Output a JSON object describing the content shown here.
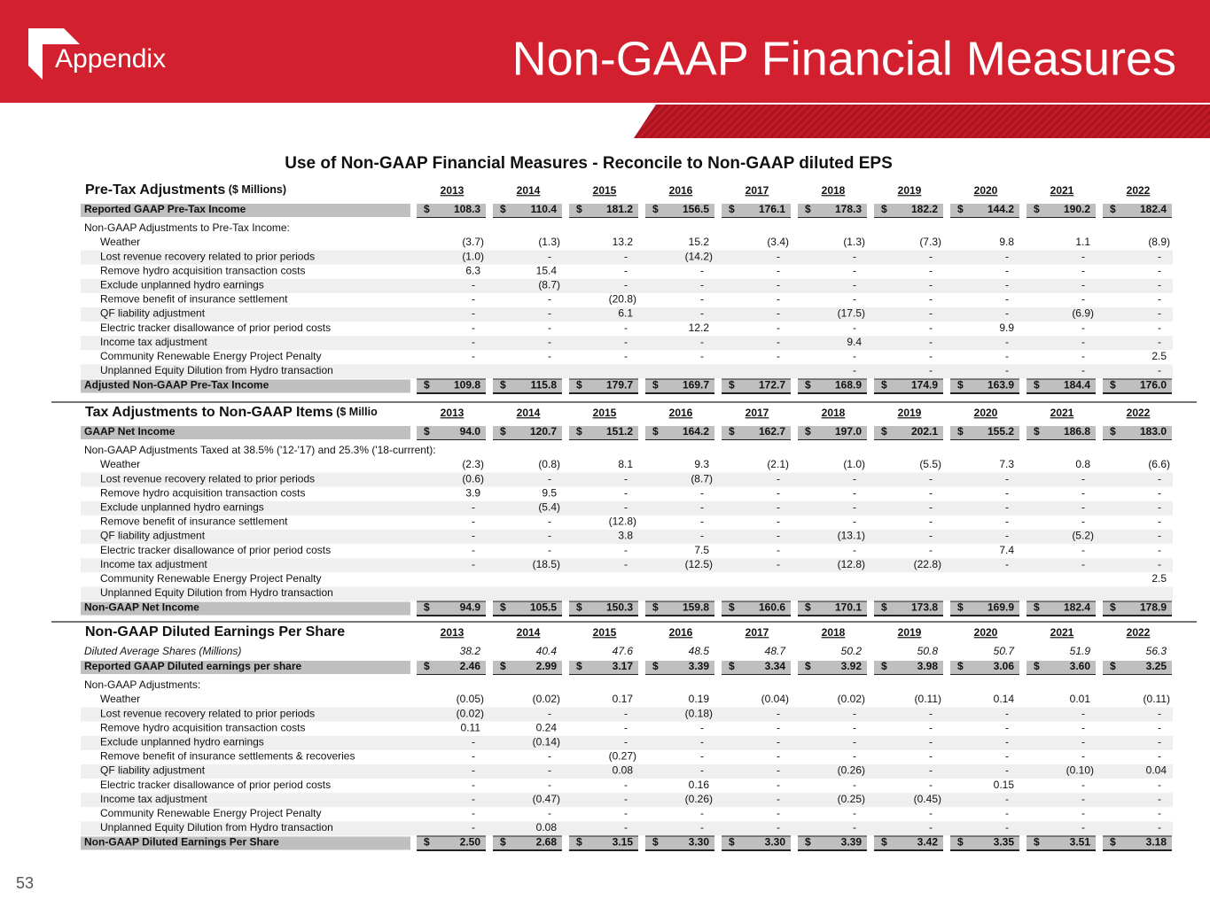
{
  "header": {
    "section": "Appendix",
    "title": "Non-GAAP Financial Measures"
  },
  "table_title": "Use of Non-GAAP Financial Measures - Reconcile to Non-GAAP diluted EPS",
  "page_number": "53",
  "sections": [
    {
      "heading": "Pre-Tax Adjustments",
      "unit": "($ Millions)",
      "currency": "$",
      "years": [
        "2013",
        "2014",
        "2015",
        "2016",
        "2017",
        "2018",
        "2019",
        "2020",
        "2021",
        "2022"
      ],
      "top": {
        "label": "Reported GAAP Pre-Tax Income",
        "values": [
          "108.3",
          "110.4",
          "181.2",
          "156.5",
          "176.1",
          "178.3",
          "182.2",
          "144.2",
          "190.2",
          "182.4"
        ]
      },
      "adjust_label": "Non-GAAP Adjustments to Pre-Tax Income:",
      "adjustments": [
        {
          "label": "Weather",
          "values": [
            "(3.7)",
            "(1.3)",
            "13.2",
            "15.2",
            "(3.4)",
            "(1.3)",
            "(7.3)",
            "9.8",
            "1.1",
            "(8.9)"
          ]
        },
        {
          "label": "Lost revenue recovery related to prior periods",
          "values": [
            "(1.0)",
            "-",
            "-",
            "(14.2)",
            "-",
            "-",
            "-",
            "-",
            "-",
            "-"
          ]
        },
        {
          "label": "Remove hydro acquisition transaction costs",
          "values": [
            "6.3",
            "15.4",
            "-",
            "-",
            "-",
            "-",
            "-",
            "-",
            "-",
            "-"
          ]
        },
        {
          "label": "Exclude unplanned hydro earnings",
          "values": [
            "-",
            "(8.7)",
            "-",
            "-",
            "-",
            "-",
            "-",
            "-",
            "-",
            "-"
          ]
        },
        {
          "label": "Remove benefit of insurance settlement",
          "values": [
            "-",
            "-",
            "(20.8)",
            "-",
            "-",
            "-",
            "-",
            "-",
            "-",
            "-"
          ]
        },
        {
          "label": "QF liability adjustment",
          "values": [
            "-",
            "-",
            "6.1",
            "-",
            "-",
            "(17.5)",
            "-",
            "-",
            "(6.9)",
            "-"
          ]
        },
        {
          "label": "Electric tracker disallowance of prior period costs",
          "values": [
            "-",
            "-",
            "-",
            "12.2",
            "-",
            "-",
            "-",
            "9.9",
            "-",
            "-"
          ]
        },
        {
          "label": "Income tax adjustment",
          "values": [
            "-",
            "-",
            "-",
            "-",
            "-",
            "9.4",
            "-",
            "-",
            "-",
            "-"
          ]
        },
        {
          "label": "Community Renewable Energy Project Penalty",
          "values": [
            "-",
            "-",
            "-",
            "-",
            "-",
            "-",
            "-",
            "-",
            "-",
            "2.5"
          ]
        },
        {
          "label": "Unplanned Equity Dilution from Hydro transaction",
          "values": [
            null,
            null,
            null,
            null,
            null,
            "-",
            "-",
            "-",
            "-",
            "-"
          ]
        }
      ],
      "bottom": {
        "label": "Adjusted Non-GAAP Pre-Tax Income",
        "values": [
          "109.8",
          "115.8",
          "179.7",
          "169.7",
          "172.7",
          "168.9",
          "174.9",
          "163.9",
          "184.4",
          "176.0"
        ]
      }
    },
    {
      "heading": "Tax Adjustments to Non-GAAP Items",
      "unit": "($ Millio",
      "currency": "$",
      "years": [
        "2013",
        "2014",
        "2015",
        "2016",
        "2017",
        "2018",
        "2019",
        "2020",
        "2021",
        "2022"
      ],
      "top": {
        "label": "GAAP Net Income",
        "values": [
          "94.0",
          "120.7",
          "151.2",
          "164.2",
          "162.7",
          "197.0",
          "202.1",
          "155.2",
          "186.8",
          "183.0"
        ]
      },
      "adjust_label": "Non-GAAP Adjustments Taxed at 38.5% ('12-'17) and 25.3% ('18-currrent):",
      "adjustments": [
        {
          "label": "Weather",
          "values": [
            "(2.3)",
            "(0.8)",
            "8.1",
            "9.3",
            "(2.1)",
            "(1.0)",
            "(5.5)",
            "7.3",
            "0.8",
            "(6.6)"
          ]
        },
        {
          "label": "Lost revenue recovery related to prior periods",
          "values": [
            "(0.6)",
            "-",
            "-",
            "(8.7)",
            "-",
            "-",
            "-",
            "-",
            "-",
            "-"
          ]
        },
        {
          "label": "Remove hydro acquisition transaction costs",
          "values": [
            "3.9",
            "9.5",
            "-",
            "-",
            "-",
            "-",
            "-",
            "-",
            "-",
            "-"
          ]
        },
        {
          "label": "Exclude unplanned hydro earnings",
          "values": [
            "-",
            "(5.4)",
            "-",
            "-",
            "-",
            "-",
            "-",
            "-",
            "-",
            "-"
          ]
        },
        {
          "label": "Remove benefit of insurance settlement",
          "values": [
            "-",
            "-",
            "(12.8)",
            "-",
            "-",
            "-",
            "-",
            "-",
            "-",
            "-"
          ]
        },
        {
          "label": "QF liability adjustment",
          "values": [
            "-",
            "-",
            "3.8",
            "-",
            "-",
            "(13.1)",
            "-",
            "-",
            "(5.2)",
            "-"
          ]
        },
        {
          "label": "Electric tracker disallowance of prior period costs",
          "values": [
            "-",
            "-",
            "-",
            "7.5",
            "-",
            "-",
            "-",
            "7.4",
            "-",
            "-"
          ]
        },
        {
          "label": "Income tax adjustment",
          "values": [
            "-",
            "(18.5)",
            "-",
            "(12.5)",
            "-",
            "(12.8)",
            "(22.8)",
            "-",
            "-",
            "-"
          ]
        },
        {
          "label": "Community Renewable Energy Project Penalty",
          "values": [
            null,
            null,
            null,
            null,
            null,
            null,
            null,
            null,
            null,
            "2.5"
          ]
        },
        {
          "label": "Unplanned Equity Dilution from Hydro transaction",
          "values": [
            null,
            null,
            null,
            null,
            null,
            null,
            null,
            null,
            null,
            null
          ]
        }
      ],
      "bottom": {
        "label": "Non-GAAP Net Income",
        "values": [
          "94.9",
          "105.5",
          "150.3",
          "159.8",
          "160.6",
          "170.1",
          "173.8",
          "169.9",
          "182.4",
          "178.9"
        ]
      }
    },
    {
      "heading": "Non-GAAP Diluted Earnings Per Share",
      "currency": "$",
      "years": [
        "2013",
        "2014",
        "2015",
        "2016",
        "2017",
        "2018",
        "2019",
        "2020",
        "2021",
        "2022"
      ],
      "shares": {
        "label": "Diluted Average Shares (Millions)",
        "values": [
          "38.2",
          "40.4",
          "47.6",
          "48.5",
          "48.7",
          "50.2",
          "50.8",
          "50.7",
          "51.9",
          "56.3"
        ]
      },
      "top": {
        "label": "Reported GAAP Diluted earnings per share",
        "values": [
          "2.46",
          "2.99",
          "3.17",
          "3.39",
          "3.34",
          "3.92",
          "3.98",
          "3.06",
          "3.60",
          "3.25"
        ]
      },
      "adjust_label": "Non-GAAP Adjustments:",
      "adjustments": [
        {
          "label": "Weather",
          "values": [
            "(0.05)",
            "(0.02)",
            "0.17",
            "0.19",
            "(0.04)",
            "(0.02)",
            "(0.11)",
            "0.14",
            "0.01",
            "(0.11)"
          ]
        },
        {
          "label": "Lost revenue recovery related to prior periods",
          "values": [
            "(0.02)",
            "-",
            "-",
            "(0.18)",
            "-",
            "-",
            "-",
            "-",
            "-",
            "-"
          ]
        },
        {
          "label": "Remove hydro acquisition transaction costs",
          "values": [
            "0.11",
            "0.24",
            "-",
            "-",
            "-",
            "-",
            "-",
            "-",
            "-",
            "-"
          ]
        },
        {
          "label": "Exclude unplanned hydro earnings",
          "values": [
            "-",
            "(0.14)",
            "-",
            "-",
            "-",
            "-",
            "-",
            "-",
            "-",
            "-"
          ]
        },
        {
          "label": "Remove benefit of insurance settlements & recoveries",
          "values": [
            "-",
            "-",
            "(0.27)",
            "-",
            "-",
            "-",
            "-",
            "-",
            "-",
            "-"
          ]
        },
        {
          "label": "QF liability adjustment",
          "values": [
            "-",
            "-",
            "0.08",
            "-",
            "-",
            "(0.26)",
            "-",
            "-",
            "(0.10)",
            "0.04"
          ]
        },
        {
          "label": "Electric tracker disallowance of prior period costs",
          "values": [
            "-",
            "-",
            "-",
            "0.16",
            "-",
            "-",
            "-",
            "0.15",
            "-",
            "-"
          ]
        },
        {
          "label": "Income tax adjustment",
          "values": [
            "-",
            "(0.47)",
            "-",
            "(0.26)",
            "-",
            "(0.25)",
            "(0.45)",
            "-",
            "-",
            "-"
          ]
        },
        {
          "label": "Community Renewable Energy Project Penalty",
          "values": [
            "-",
            "-",
            "-",
            "-",
            "-",
            "-",
            "-",
            "-",
            "-",
            "-"
          ]
        },
        {
          "label": "Unplanned Equity Dilution from Hydro transaction",
          "values": [
            "-",
            "0.08",
            "-",
            "-",
            "-",
            "-",
            "-",
            "-",
            "-",
            "-"
          ]
        }
      ],
      "bottom": {
        "label": "Non-GAAP Diluted Earnings Per Share",
        "values": [
          "2.50",
          "2.68",
          "3.15",
          "3.30",
          "3.30",
          "3.39",
          "3.42",
          "3.35",
          "3.51",
          "3.18"
        ]
      }
    }
  ]
}
